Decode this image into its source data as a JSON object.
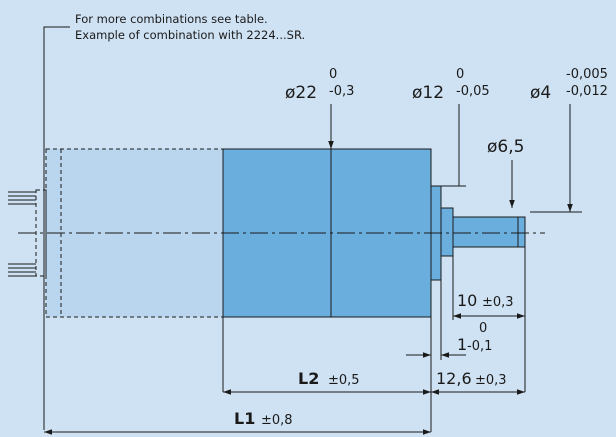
{
  "notes": {
    "line1": "For more combinations see table.",
    "line2": "Example of combination with 2224...SR."
  },
  "diameters": {
    "d22": {
      "label": "ø22",
      "upper": "0",
      "lower": "-0,3"
    },
    "d12": {
      "label": "ø12",
      "upper": "0",
      "lower": "-0,05"
    },
    "d4": {
      "label": "ø4",
      "upper": "-0,005",
      "lower": "-0,012"
    },
    "d6_5": {
      "label": "ø6,5"
    }
  },
  "lengths": {
    "l10": {
      "value": "10",
      "tol": "±0,3"
    },
    "l1": {
      "upper": "0",
      "value": "1",
      "lower": "-0,1"
    },
    "l12_6": {
      "value": "12,6",
      "tol": "±0,3"
    },
    "L2": {
      "name": "L2",
      "tol": "±0,5"
    },
    "L1": {
      "name": "L1",
      "tol": "±0,8"
    }
  },
  "colors": {
    "background": "#cfe2f3",
    "gearhead": "#6aaede",
    "motor_ghost": "#b9d6ee",
    "line": "#1a1a1a"
  }
}
